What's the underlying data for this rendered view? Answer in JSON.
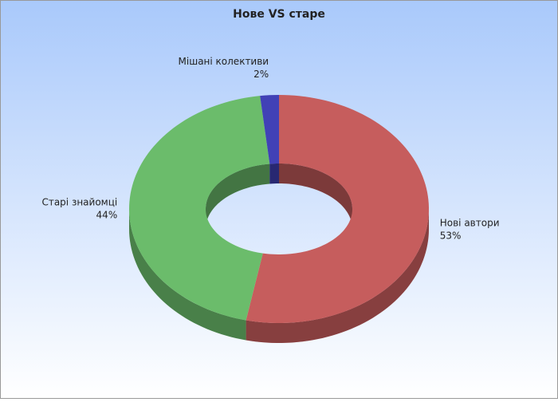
{
  "chart_data": {
    "type": "pie",
    "donut": true,
    "title": "Нове VS старе",
    "categories": [
      "Нові автори",
      "Старі знайомці",
      "Мішані колективи"
    ],
    "values": [
      53,
      44,
      2
    ],
    "value_labels": [
      "53%",
      "44%",
      "2%"
    ],
    "colors": [
      "#e26a6a",
      "#7ad67a",
      "#4a4ad0"
    ]
  }
}
